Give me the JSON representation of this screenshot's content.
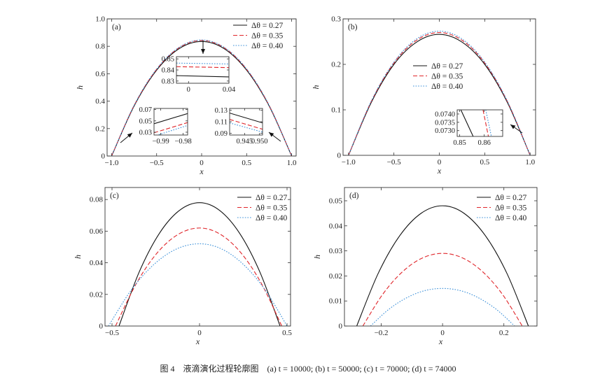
{
  "caption": "图 4　液滴演化过程轮廓图　(a) t = 10000; (b) t = 50000; (c) t = 70000; (d) t = 74000",
  "chart_data": [
    {
      "type": "line",
      "label": "(a)",
      "xlabel": "x",
      "ylabel": "h",
      "xlim": [
        -1.05,
        1.05
      ],
      "ylim": [
        0,
        1.0
      ],
      "xticks": [
        -1,
        -0.5,
        0,
        0.5,
        1
      ],
      "xtick_labels": [
        "−1.0",
        "−0.5",
        "0",
        "0.5",
        "1.0"
      ],
      "yticks": [
        0,
        0.2,
        0.4,
        0.6,
        0.8,
        1.0
      ],
      "ytick_labels": [
        "0",
        "0.2",
        "0.4",
        "0.6",
        "0.8",
        "1.0"
      ],
      "legend": "top-right",
      "grid": false,
      "series": [
        {
          "name": "Δθ = 0.27",
          "color": "#111111",
          "style": "solid",
          "x": [
            -1,
            -0.75,
            -0.5,
            -0.25,
            0,
            0.25,
            0.5,
            0.75,
            1
          ],
          "y": [
            0,
            0.365,
            0.626,
            0.783,
            0.835,
            0.783,
            0.626,
            0.365,
            0
          ]
        },
        {
          "name": "Δθ = 0.35",
          "color": "#e0262b",
          "style": "dashed",
          "x": [
            -1,
            -0.75,
            -0.5,
            -0.25,
            0,
            0.25,
            0.5,
            0.75,
            1
          ],
          "y": [
            0,
            0.369,
            0.632,
            0.79,
            0.843,
            0.79,
            0.632,
            0.369,
            0
          ]
        },
        {
          "name": "Δθ = 0.40",
          "color": "#3a8fd8",
          "style": "dotted",
          "x": [
            -1,
            -0.75,
            -0.5,
            -0.25,
            0,
            0.25,
            0.5,
            0.75,
            1
          ],
          "y": [
            0,
            0.37,
            0.635,
            0.793,
            0.846,
            0.793,
            0.635,
            0.37,
            0
          ]
        }
      ],
      "insets": [
        {
          "xlim": [
            -0.012,
            0.04
          ],
          "ylim": [
            0.828,
            0.852
          ],
          "xticks": [
            0,
            0.04
          ],
          "xtick_labels": [
            "0",
            "0.04"
          ],
          "yticks": [
            0.83,
            0.84,
            0.85
          ],
          "ytick_labels": [
            "0.83",
            "0.84",
            "0.85"
          ],
          "series": [
            {
              "x": [
                -0.012,
                0.04
              ],
              "y": [
                0.8349,
                0.8337
              ]
            },
            {
              "x": [
                -0.012,
                0.04
              ],
              "y": [
                0.843,
                0.8421
              ]
            },
            {
              "x": [
                -0.012,
                0.04
              ],
              "y": [
                0.8462,
                0.8454
              ]
            }
          ]
        },
        {
          "xlim": [
            -0.993,
            -0.978
          ],
          "ylim": [
            0.025,
            0.072
          ],
          "xticks": [
            -0.99,
            -0.98
          ],
          "xtick_labels": [
            "−0.99",
            "−0.98"
          ],
          "yticks": [
            0.03,
            0.05,
            0.07
          ],
          "ytick_labels": [
            "0.03",
            "0.05",
            "0.07"
          ],
          "series": [
            {
              "x": [
                -0.993,
                -0.978
              ],
              "y": [
                0.045,
                0.063
              ]
            },
            {
              "x": [
                -0.993,
                -0.978
              ],
              "y": [
                0.029,
                0.047
              ]
            },
            {
              "x": [
                -0.993,
                -0.978
              ],
              "y": [
                0.023,
                0.042
              ]
            }
          ]
        },
        {
          "xlim": [
            0.94,
            0.951
          ],
          "ylim": [
            0.087,
            0.133
          ],
          "xticks": [
            0.945,
            0.95
          ],
          "xtick_labels": [
            "0.945",
            "0.950"
          ],
          "yticks": [
            0.09,
            0.11,
            0.13
          ],
          "ytick_labels": [
            "0.09",
            "0.11",
            "0.13"
          ],
          "series": [
            {
              "x": [
                0.94,
                0.951
              ],
              "y": [
                0.125,
                0.108
              ]
            },
            {
              "x": [
                0.94,
                0.951
              ],
              "y": [
                0.114,
                0.097
              ]
            },
            {
              "x": [
                0.94,
                0.951
              ],
              "y": [
                0.108,
                0.092
              ]
            }
          ]
        }
      ]
    },
    {
      "type": "line",
      "label": "(b)",
      "xlabel": "x",
      "ylabel": "h",
      "xlim": [
        -1.06,
        1.06
      ],
      "ylim": [
        0,
        0.3
      ],
      "xticks": [
        -1,
        -0.5,
        0,
        0.5,
        1
      ],
      "xtick_labels": [
        "−1.0",
        "−0.5",
        "0",
        "0.5",
        "1.0"
      ],
      "yticks": [
        0,
        0.1,
        0.2,
        0.3
      ],
      "ytick_labels": [
        "0",
        "0.1",
        "0.2",
        "0.3"
      ],
      "legend": "center",
      "grid": false,
      "series": [
        {
          "name": "Δθ = 0.27",
          "color": "#111111",
          "style": "solid",
          "x": [
            -1,
            -0.75,
            -0.5,
            -0.25,
            0,
            0.25,
            0.5,
            0.75,
            1
          ],
          "y": [
            0,
            0.116,
            0.2,
            0.249,
            0.266,
            0.249,
            0.2,
            0.116,
            0
          ]
        },
        {
          "name": "Δθ = 0.35",
          "color": "#e0262b",
          "style": "dashed",
          "x": [
            -1,
            -0.75,
            -0.5,
            -0.25,
            0,
            0.25,
            0.5,
            0.75,
            1
          ],
          "y": [
            0,
            0.118,
            0.203,
            0.253,
            0.27,
            0.253,
            0.203,
            0.118,
            0
          ]
        },
        {
          "name": "Δθ = 0.40",
          "color": "#3a8fd8",
          "style": "dotted",
          "x": [
            -1,
            -0.75,
            -0.5,
            -0.25,
            0,
            0.25,
            0.5,
            0.75,
            1
          ],
          "y": [
            0,
            0.119,
            0.205,
            0.256,
            0.273,
            0.256,
            0.205,
            0.119,
            0
          ]
        }
      ],
      "insets": [
        {
          "xlim": [
            0.849,
            0.8675
          ],
          "ylim": [
            0.07265,
            0.07425
          ],
          "xticks": [
            0.85,
            0.86
          ],
          "xtick_labels": [
            "0.85",
            "0.86"
          ],
          "yticks": [
            0.073,
            0.0735,
            0.074
          ],
          "ytick_labels": [
            "0.0730",
            "0.0735",
            "0.0740"
          ],
          "series": [
            {
              "x": [
                0.8505,
                0.8555
              ],
              "y": [
                0.07425,
                0.07265
              ]
            },
            {
              "x": [
                0.8595,
                0.8617
              ],
              "y": [
                0.07425,
                0.07265
              ]
            },
            {
              "x": [
                0.8606,
                0.8629
              ],
              "y": [
                0.07425,
                0.07265
              ]
            }
          ]
        }
      ]
    },
    {
      "type": "line",
      "label": "(c)",
      "xlabel": "x",
      "ylabel": "h",
      "xlim": [
        -0.54,
        0.52
      ],
      "ylim": [
        0,
        0.0876
      ],
      "xticks": [
        -0.5,
        0,
        0.5
      ],
      "xtick_labels": [
        "−0.5",
        "0",
        "0.5"
      ],
      "yticks": [
        0,
        0.02,
        0.04,
        0.06,
        0.08
      ],
      "ytick_labels": [
        "0",
        "0.02",
        "0.04",
        "0.06",
        "0.08"
      ],
      "legend": "top-right",
      "grid": false,
      "series": [
        {
          "name": "Δθ = 0.27",
          "color": "#111111",
          "style": "solid",
          "x": [
            -0.46,
            -0.345,
            -0.23,
            -0.115,
            0,
            0.115,
            0.23,
            0.345,
            0.46
          ],
          "y": [
            0,
            0.0341,
            0.0585,
            0.0731,
            0.078,
            0.0731,
            0.0585,
            0.0341,
            0
          ]
        },
        {
          "name": "Δθ = 0.35",
          "color": "#e0262b",
          "style": "dashed",
          "x": [
            -0.48,
            -0.36,
            -0.24,
            -0.12,
            0,
            0.1175,
            0.235,
            0.3525,
            0.47
          ],
          "y": [
            0,
            0.0271,
            0.0465,
            0.0581,
            0.062,
            0.0581,
            0.0465,
            0.0271,
            0
          ]
        },
        {
          "name": "Δθ = 0.40",
          "color": "#3a8fd8",
          "style": "dotted",
          "x": [
            -0.52,
            -0.39,
            -0.26,
            -0.13,
            0,
            0.125,
            0.25,
            0.375,
            0.5
          ],
          "y": [
            0,
            0.0228,
            0.039,
            0.0488,
            0.052,
            0.0488,
            0.039,
            0.0228,
            0
          ]
        }
      ]
    },
    {
      "type": "line",
      "label": "(d)",
      "xlabel": "x",
      "ylabel": "h",
      "xlim": [
        -0.32,
        0.308
      ],
      "ylim": [
        0,
        0.0553
      ],
      "xticks": [
        -0.2,
        0,
        0.2
      ],
      "xtick_labels": [
        "−0.2",
        "0",
        "0.2"
      ],
      "yticks": [
        0,
        0.01,
        0.02,
        0.03,
        0.04,
        0.05
      ],
      "ytick_labels": [
        "0",
        "0.01",
        "0.02",
        "0.03",
        "0.04",
        "0.05"
      ],
      "legend": "top-right",
      "grid": false,
      "series": [
        {
          "name": "Δθ = 0.27",
          "color": "#111111",
          "style": "solid",
          "x": [
            -0.28,
            -0.21,
            -0.14,
            -0.07,
            0,
            0.07,
            0.14,
            0.21,
            0.28
          ],
          "y": [
            0,
            0.021,
            0.036,
            0.045,
            0.048,
            0.045,
            0.036,
            0.021,
            0
          ]
        },
        {
          "name": "Δθ = 0.35",
          "color": "#e0262b",
          "style": "dashed",
          "x": [
            -0.26,
            -0.195,
            -0.13,
            -0.065,
            0,
            0.065,
            0.13,
            0.195,
            0.26
          ],
          "y": [
            0,
            0.0127,
            0.02175,
            0.0272,
            0.029,
            0.0272,
            0.02175,
            0.0127,
            0
          ]
        },
        {
          "name": "Δθ = 0.40",
          "color": "#3a8fd8",
          "style": "dotted",
          "x": [
            -0.235,
            -0.176,
            -0.1175,
            -0.059,
            0,
            0.059,
            0.1175,
            0.176,
            0.235
          ],
          "y": [
            0,
            0.0066,
            0.01125,
            0.0141,
            0.015,
            0.0141,
            0.01125,
            0.0066,
            0
          ]
        }
      ]
    }
  ]
}
